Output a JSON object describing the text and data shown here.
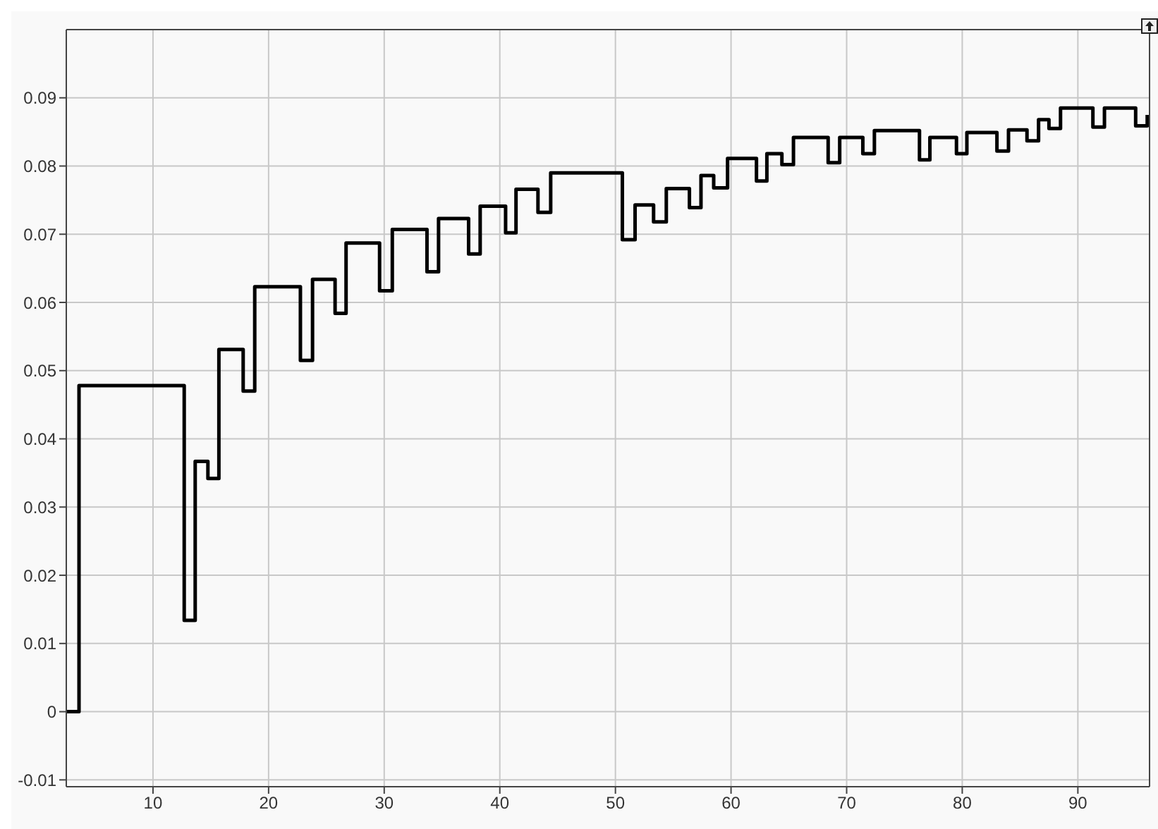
{
  "chart_data": {
    "type": "step",
    "x": [
      2.5,
      3.6,
      12.7,
      13.65,
      14.75,
      15.7,
      17.8,
      18.8,
      22.75,
      23.8,
      25.75,
      26.7,
      29.6,
      30.7,
      33.7,
      34.7,
      37.3,
      38.3,
      40.5,
      41.4,
      43.3,
      44.4,
      50.6,
      51.7,
      53.3,
      54.4,
      56.4,
      57.4,
      58.5,
      59.7,
      62.2,
      63.1,
      64.4,
      65.4,
      68.4,
      69.4,
      71.4,
      72.4,
      76.3,
      77.2,
      79.5,
      80.4,
      83.0,
      84.0,
      85.6,
      86.6,
      87.5,
      88.5,
      91.3,
      92.3,
      95.0,
      96.0
    ],
    "series": [
      {
        "color": "#000000",
        "values": [
          0,
          0.0478,
          0.0134,
          0.0367,
          0.0342,
          0.0531,
          0.047,
          0.0623,
          0.0515,
          0.0634,
          0.0584,
          0.0687,
          0.0617,
          0.0707,
          0.0645,
          0.0723,
          0.0671,
          0.0741,
          0.0702,
          0.0766,
          0.0732,
          0.079,
          0.0692,
          0.0743,
          0.0718,
          0.0767,
          0.0739,
          0.0786,
          0.0768,
          0.0811,
          0.0778,
          0.0818,
          0.0802,
          0.0842,
          0.0805,
          0.0842,
          0.0818,
          0.0852,
          0.0809,
          0.0842,
          0.0818,
          0.0849,
          0.0822,
          0.0853,
          0.0837,
          0.0868,
          0.0855,
          0.0885,
          0.0857,
          0.0885,
          0.0859,
          0.0875
        ]
      }
    ],
    "xlim": [
      2.5,
      96.2
    ],
    "xticks": [
      10,
      20,
      30,
      40,
      50,
      60,
      70,
      80,
      90
    ],
    "ylim": [
      -0.011,
      0.1
    ],
    "yticks": [
      -0.01,
      0,
      0.01,
      0.02,
      0.03,
      0.04,
      0.05,
      0.06,
      0.07,
      0.08,
      0.09
    ],
    "grid": true,
    "marker": "none",
    "line_style": "solid"
  }
}
